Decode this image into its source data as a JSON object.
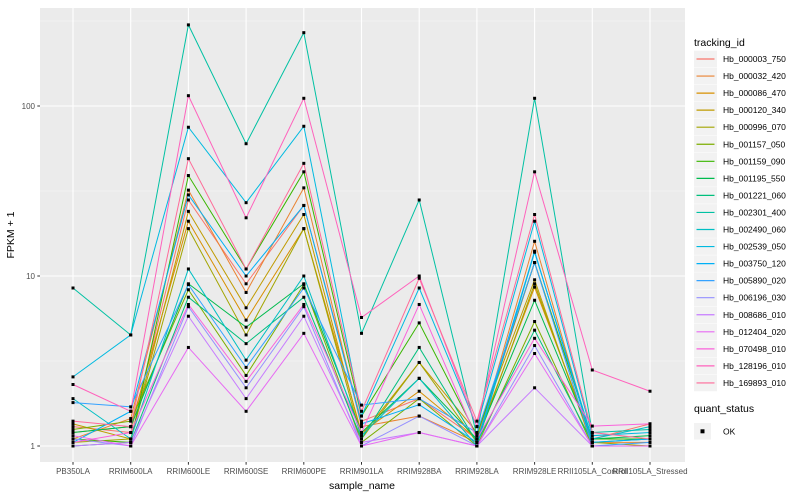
{
  "chart_data": {
    "type": "line",
    "title": "",
    "xlabel": "sample_name",
    "ylabel": "FPKM + 1",
    "yscale": "log10",
    "ylim": [
      1,
      380
    ],
    "yticks": [
      1,
      10,
      100
    ],
    "ytick_labels": [
      "1",
      "10",
      "100"
    ],
    "yticks_minor": [
      3.162,
      31.62,
      316.2
    ],
    "grid": true,
    "panel_fill": "#EBEBEB",
    "grid_color": "#FFFFFF",
    "point_shape": "filled-square",
    "point_color": "#000000",
    "legend_position": "right",
    "legend_titles": {
      "color": "tracking_id",
      "shape": "quant_status"
    },
    "quant_status_values": [
      "OK"
    ],
    "categories": [
      "PB350LA",
      "RRIM600LA",
      "RRIM600LE",
      "RRIM600SE",
      "RRIM600PE",
      "RRIM901LA",
      "RRIM928BA",
      "RRIM928LA",
      "RRIM928LE",
      "RRII105LA_Control",
      "RRII105LA_Stressed"
    ],
    "series": [
      {
        "name": "Hb_000003_750",
        "color": "#F8766D",
        "values": [
          1.3,
          1.2,
          28,
          9,
          26,
          1.4,
          1.9,
          1.1,
          12,
          1.1,
          1.35
        ]
      },
      {
        "name": "Hb_000032_420",
        "color": "#EA8331",
        "values": [
          1.1,
          1.45,
          32,
          8,
          33,
          1.3,
          1.5,
          1.05,
          16,
          1.05,
          1.05
        ]
      },
      {
        "name": "Hb_000086_470",
        "color": "#D89000",
        "values": [
          1.2,
          1.3,
          21,
          5.5,
          19,
          1.2,
          2.1,
          1.1,
          8.6,
          1.1,
          1.1
        ]
      },
      {
        "name": "Hb_000120_340",
        "color": "#C09B00",
        "values": [
          1.35,
          1.1,
          24,
          6.5,
          23,
          1.15,
          3.1,
          1.2,
          9.5,
          1.0,
          1.0
        ]
      },
      {
        "name": "Hb_000996_070",
        "color": "#A3A500",
        "values": [
          1.05,
          1.1,
          19,
          4.5,
          19,
          1.1,
          3.1,
          1.05,
          9.0,
          1.05,
          1.0
        ]
      },
      {
        "name": "Hb_001157_050",
        "color": "#7CAE00",
        "values": [
          1.25,
          1.4,
          8.3,
          2.6,
          8.9,
          1.05,
          1.9,
          1.0,
          5.4,
          1.0,
          1.0
        ]
      },
      {
        "name": "Hb_001159_090",
        "color": "#39B600",
        "values": [
          1.1,
          1.05,
          39,
          11,
          41,
          1.5,
          5.3,
          1.15,
          12,
          1.1,
          1.1
        ]
      },
      {
        "name": "Hb_001195_550",
        "color": "#00BB4E",
        "values": [
          1.2,
          1.3,
          9.0,
          5.0,
          9.0,
          1.2,
          2.5,
          1.1,
          7.2,
          1.1,
          1.15
        ]
      },
      {
        "name": "Hb_001221_060",
        "color": "#00BF7D",
        "values": [
          1.0,
          1.05,
          7.5,
          4.0,
          7.5,
          1.1,
          3.8,
          1.05,
          4.8,
          1.05,
          1.1
        ]
      },
      {
        "name": "Hb_002301_400",
        "color": "#00C1A3",
        "values": [
          8.5,
          4.5,
          300,
          60,
          270,
          4.6,
          28,
          1.15,
          111,
          1.2,
          1.25
        ]
      },
      {
        "name": "Hb_002490_060",
        "color": "#00BFC4",
        "values": [
          1.9,
          1.1,
          11,
          3.2,
          10,
          1.15,
          2.5,
          1.0,
          13.8,
          1.1,
          1.3
        ]
      },
      {
        "name": "Hb_002539_050",
        "color": "#00BAE0",
        "values": [
          2.55,
          4.5,
          75,
          27,
          76,
          1.5,
          8.5,
          1.3,
          21,
          1.15,
          1.2
        ]
      },
      {
        "name": "Hb_003750_120",
        "color": "#00B0F6",
        "values": [
          1.05,
          1.6,
          30,
          10,
          26,
          1.35,
          1.75,
          1.05,
          14,
          1.05,
          1.1
        ]
      },
      {
        "name": "Hb_005890_020",
        "color": "#35A2FF",
        "values": [
          1.8,
          1.7,
          8.9,
          2.9,
          8.5,
          1.74,
          1.9,
          1.2,
          12,
          1.0,
          1.05
        ]
      },
      {
        "name": "Hb_006196_030",
        "color": "#9590FF",
        "values": [
          1.1,
          1.0,
          6.6,
          2.2,
          6.6,
          1.0,
          1.5,
          1.0,
          3.9,
          1.0,
          1.0
        ]
      },
      {
        "name": "Hb_008686_010",
        "color": "#C77CFF",
        "values": [
          1.0,
          1.05,
          5.8,
          1.9,
          5.8,
          1.05,
          1.2,
          1.0,
          2.2,
          1.0,
          1.0
        ]
      },
      {
        "name": "Hb_012404_020",
        "color": "#E76BF3",
        "values": [
          1.15,
          1.0,
          3.8,
          1.6,
          4.6,
          1.0,
          1.2,
          1.0,
          3.5,
          1.0,
          1.0
        ]
      },
      {
        "name": "Hb_070498_010",
        "color": "#FA62DB",
        "values": [
          1.05,
          1.2,
          6.8,
          2.4,
          6.8,
          1.2,
          6.8,
          1.1,
          4.3,
          1.31,
          1.35
        ]
      },
      {
        "name": "Hb_128196_010",
        "color": "#FF62BC",
        "values": [
          2.3,
          1.6,
          115,
          22,
          111,
          5.7,
          10,
          1.3,
          41,
          2.8,
          2.1
        ]
      },
      {
        "name": "Hb_169893_010",
        "color": "#FF6A98",
        "values": [
          1.4,
          1.3,
          49,
          11,
          46,
          1.6,
          9.7,
          1.4,
          23,
          1.2,
          1.1
        ]
      }
    ]
  }
}
